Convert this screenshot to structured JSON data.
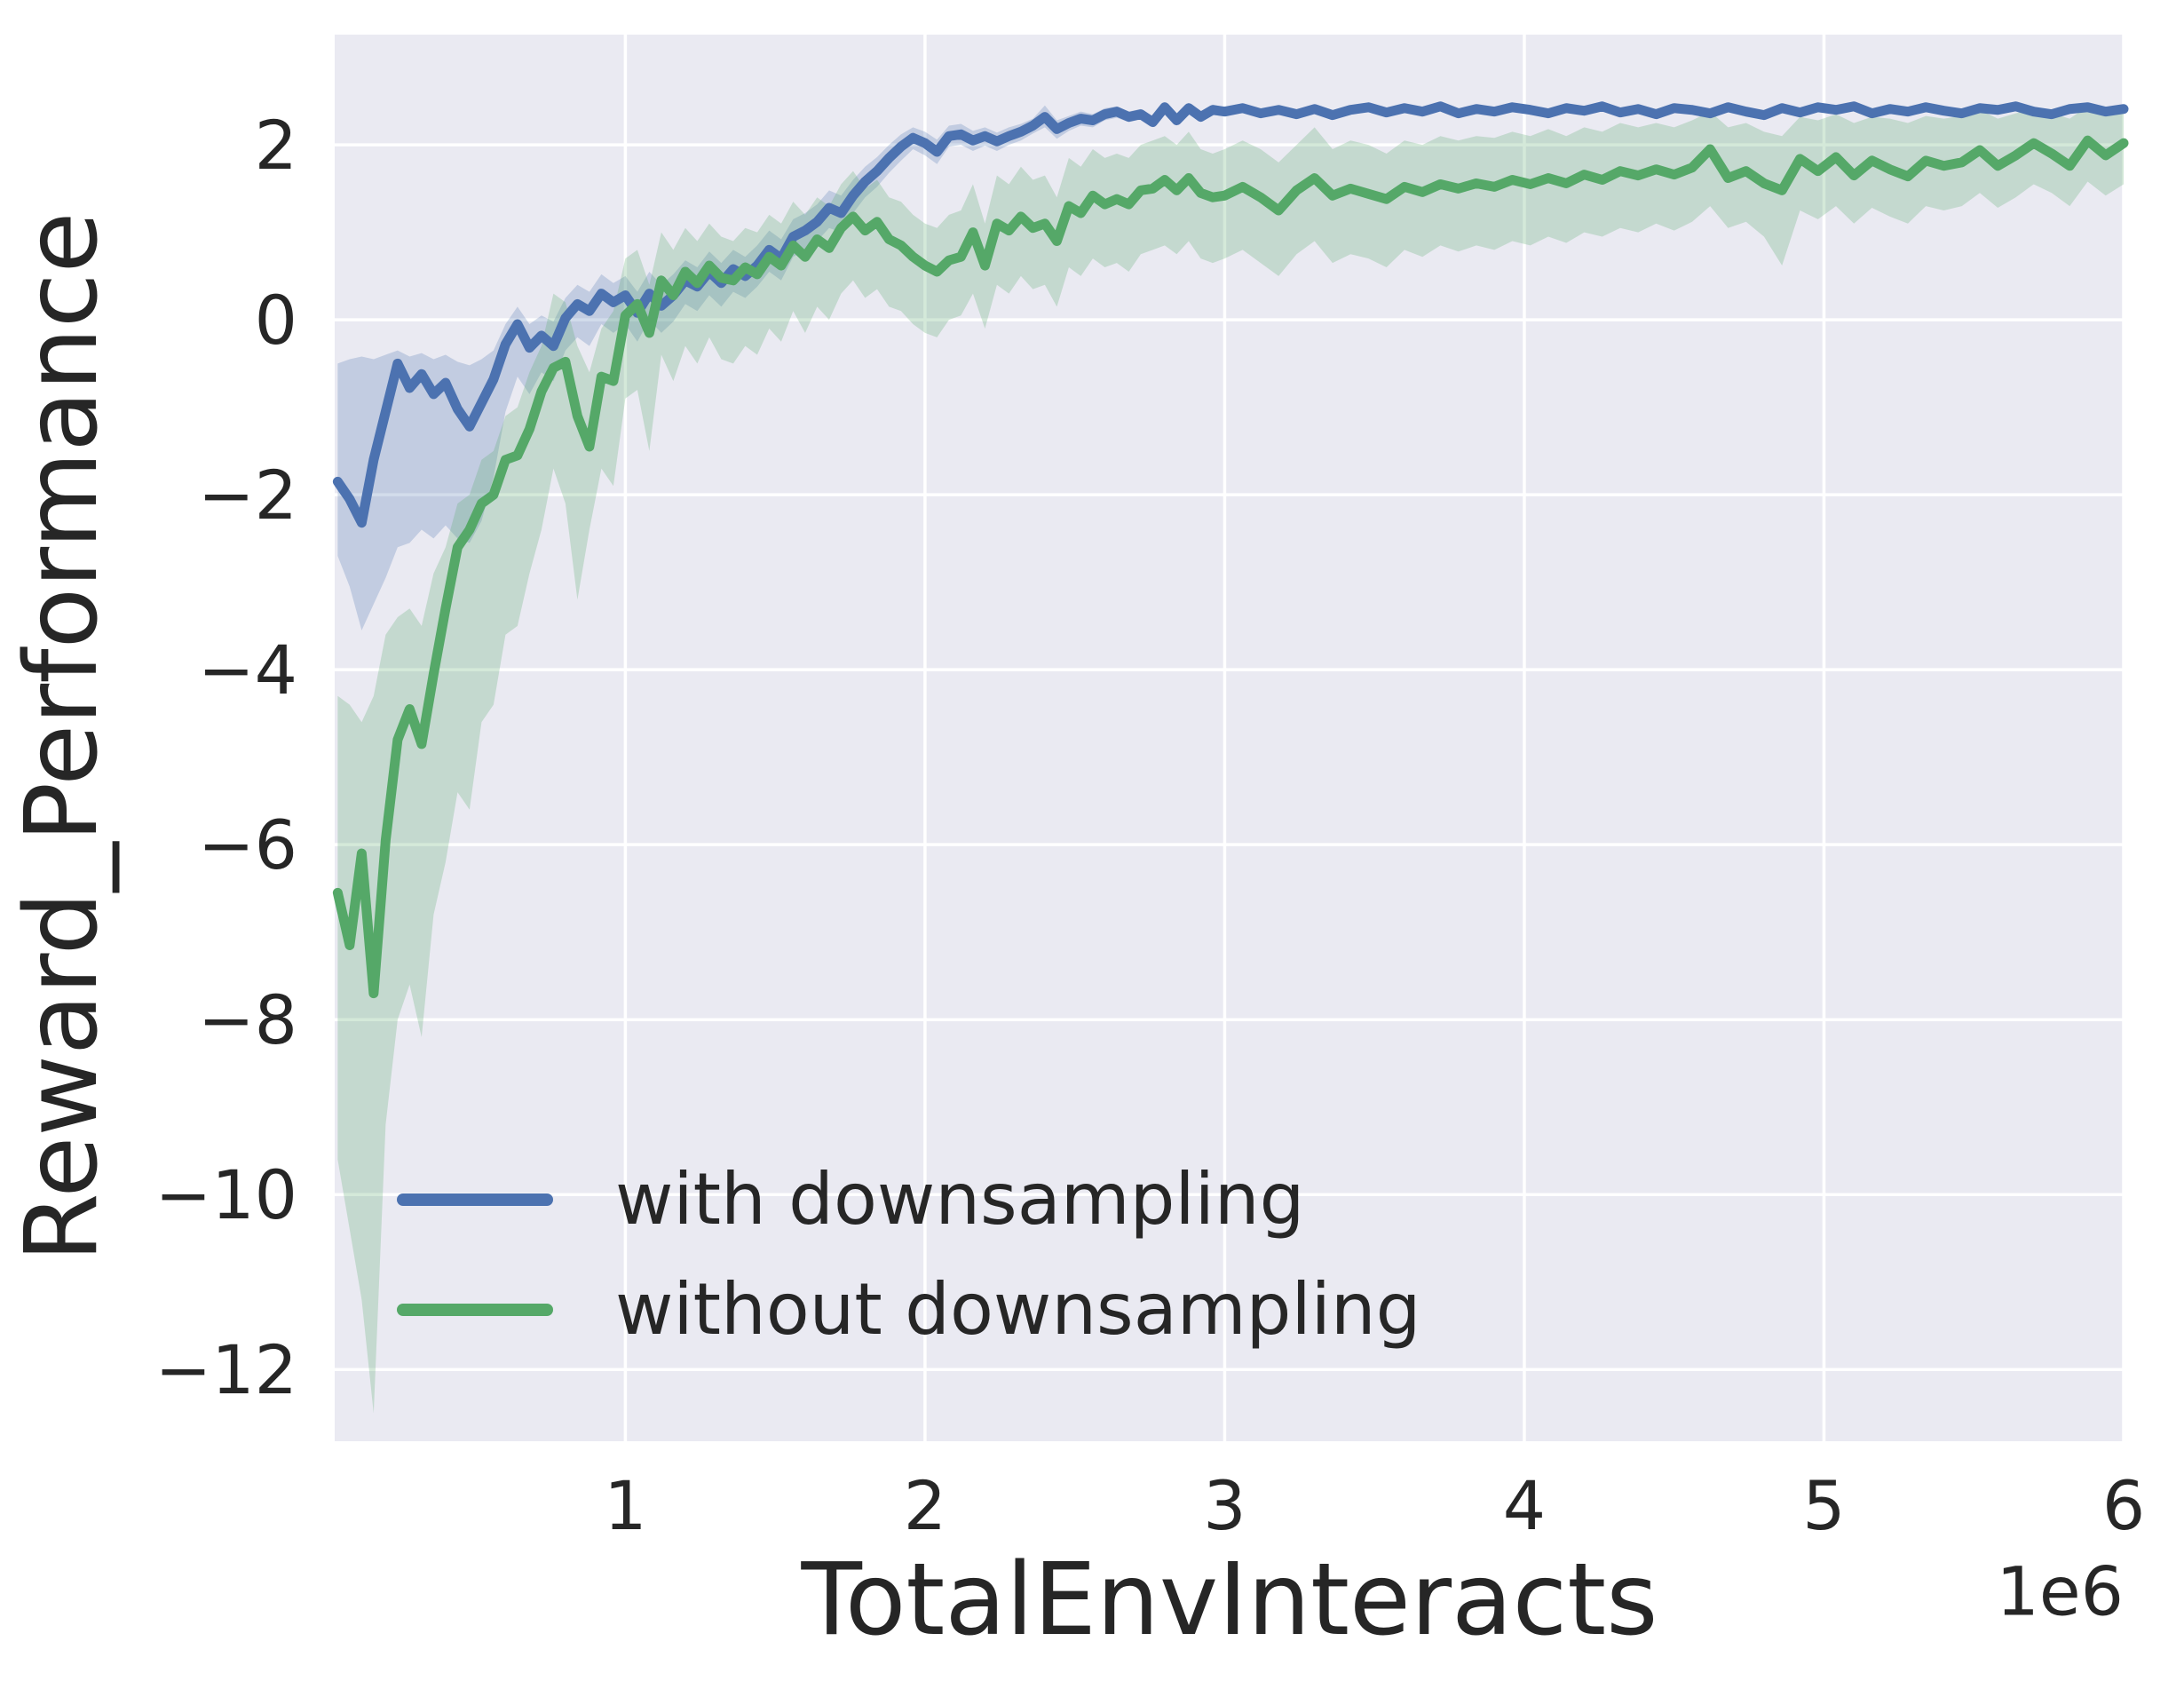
{
  "figure": {
    "background": "#ffffff",
    "plot_background": "#eaeaf2",
    "grid_color": "#ffffff",
    "text_color": "#262626"
  },
  "chart_data": {
    "type": "line",
    "title": "",
    "xlabel": "TotalEnvInteracts",
    "ylabel": "Reward_Performance",
    "x_offset_label": "1e6",
    "x_unit": 1000000,
    "grid": true,
    "legend_position": "lower left",
    "xlim": [
      0.03,
      6.0
    ],
    "ylim": [
      -12.82,
      3.26
    ],
    "xticks": [
      1,
      2,
      3,
      4,
      5,
      6
    ],
    "xtick_labels": [
      "1",
      "2",
      "3",
      "4",
      "5",
      "6"
    ],
    "yticks": [
      2,
      0,
      -2,
      -4,
      -6,
      -8,
      -10,
      -12
    ],
    "ytick_labels": [
      "2",
      "0",
      "−2",
      "−4",
      "−6",
      "−8",
      "−10",
      "−12"
    ],
    "x": [
      0.04,
      0.08,
      0.12,
      0.16,
      0.2,
      0.24,
      0.28,
      0.32,
      0.36,
      0.4,
      0.44,
      0.48,
      0.52,
      0.56,
      0.6,
      0.64,
      0.68,
      0.72,
      0.76,
      0.8,
      0.84,
      0.88,
      0.92,
      0.96,
      1.0,
      1.04,
      1.08,
      1.12,
      1.16,
      1.2,
      1.24,
      1.28,
      1.32,
      1.36,
      1.4,
      1.44,
      1.48,
      1.52,
      1.56,
      1.6,
      1.64,
      1.68,
      1.72,
      1.76,
      1.8,
      1.84,
      1.88,
      1.92,
      1.96,
      2.0,
      2.04,
      2.08,
      2.12,
      2.16,
      2.2,
      2.24,
      2.28,
      2.32,
      2.36,
      2.4,
      2.44,
      2.48,
      2.52,
      2.56,
      2.6,
      2.64,
      2.68,
      2.72,
      2.76,
      2.8,
      2.84,
      2.88,
      2.92,
      2.96,
      3.0,
      3.06,
      3.12,
      3.18,
      3.24,
      3.3,
      3.36,
      3.42,
      3.48,
      3.54,
      3.6,
      3.66,
      3.72,
      3.78,
      3.84,
      3.9,
      3.96,
      4.02,
      4.08,
      4.14,
      4.2,
      4.26,
      4.32,
      4.38,
      4.44,
      4.5,
      4.56,
      4.62,
      4.68,
      4.74,
      4.8,
      4.86,
      4.92,
      4.98,
      5.04,
      5.1,
      5.16,
      5.22,
      5.28,
      5.34,
      5.4,
      5.46,
      5.52,
      5.58,
      5.64,
      5.7,
      5.76,
      5.82,
      5.88,
      5.94,
      6.0
    ],
    "series": [
      {
        "name": "with downsampling",
        "color": "#4c72b0",
        "band_color": "rgba(76,114,176,0.25)",
        "mean": [
          -1.85,
          -2.05,
          -2.32,
          -1.6,
          -1.05,
          -0.5,
          -0.78,
          -0.62,
          -0.85,
          -0.72,
          -1.02,
          -1.22,
          -0.95,
          -0.68,
          -0.28,
          -0.05,
          -0.32,
          -0.18,
          -0.3,
          0.02,
          0.18,
          0.1,
          0.3,
          0.2,
          0.28,
          0.08,
          0.3,
          0.16,
          0.28,
          0.45,
          0.38,
          0.55,
          0.42,
          0.58,
          0.5,
          0.62,
          0.8,
          0.7,
          0.95,
          1.02,
          1.12,
          1.28,
          1.22,
          1.42,
          1.58,
          1.7,
          1.85,
          1.98,
          2.08,
          2.02,
          1.92,
          2.1,
          2.12,
          2.05,
          2.1,
          2.04,
          2.1,
          2.15,
          2.22,
          2.32,
          2.18,
          2.25,
          2.3,
          2.28,
          2.35,
          2.38,
          2.32,
          2.35,
          2.26,
          2.43,
          2.28,
          2.42,
          2.32,
          2.4,
          2.38,
          2.42,
          2.36,
          2.4,
          2.35,
          2.41,
          2.34,
          2.4,
          2.43,
          2.37,
          2.42,
          2.38,
          2.44,
          2.36,
          2.41,
          2.38,
          2.43,
          2.4,
          2.36,
          2.42,
          2.39,
          2.44,
          2.37,
          2.41,
          2.35,
          2.42,
          2.4,
          2.36,
          2.43,
          2.38,
          2.34,
          2.42,
          2.37,
          2.43,
          2.4,
          2.44,
          2.36,
          2.41,
          2.38,
          2.43,
          2.39,
          2.36,
          2.42,
          2.4,
          2.44,
          2.38,
          2.35,
          2.41,
          2.43,
          2.38,
          2.41
        ],
        "upper": [
          -0.5,
          -0.45,
          -0.42,
          -0.45,
          -0.4,
          -0.35,
          -0.42,
          -0.38,
          -0.45,
          -0.4,
          -0.48,
          -0.52,
          -0.45,
          -0.35,
          -0.05,
          0.15,
          -0.05,
          0.05,
          -0.02,
          0.25,
          0.4,
          0.32,
          0.52,
          0.42,
          0.5,
          0.32,
          0.55,
          0.4,
          0.52,
          0.68,
          0.6,
          0.78,
          0.65,
          0.8,
          0.72,
          0.85,
          1.02,
          0.92,
          1.15,
          1.22,
          1.32,
          1.48,
          1.42,
          1.6,
          1.75,
          1.86,
          2.0,
          2.12,
          2.2,
          2.15,
          2.06,
          2.22,
          2.24,
          2.16,
          2.2,
          2.14,
          2.2,
          2.24,
          2.3,
          2.45,
          2.28,
          2.33,
          2.38,
          2.35,
          2.42,
          2.44,
          2.38,
          2.41,
          2.32,
          2.49,
          2.34,
          2.48,
          2.38,
          2.46,
          2.43,
          2.47,
          2.41,
          2.45,
          2.4,
          2.46,
          2.39,
          2.45,
          2.48,
          2.42,
          2.47,
          2.43,
          2.49,
          2.41,
          2.46,
          2.43,
          2.48,
          2.45,
          2.41,
          2.47,
          2.44,
          2.49,
          2.42,
          2.46,
          2.4,
          2.47,
          2.45,
          2.41,
          2.48,
          2.43,
          2.39,
          2.47,
          2.42,
          2.48,
          2.45,
          2.49,
          2.41,
          2.46,
          2.43,
          2.48,
          2.44,
          2.41,
          2.47,
          2.45,
          2.49,
          2.43,
          2.4,
          2.46,
          2.48,
          2.43,
          2.46
        ],
        "lower": [
          -2.7,
          -3.05,
          -3.55,
          -3.25,
          -2.95,
          -2.6,
          -2.55,
          -2.4,
          -2.5,
          -2.35,
          -2.5,
          -2.55,
          -2.3,
          -1.8,
          -1.05,
          -0.65,
          -0.85,
          -0.6,
          -0.7,
          -0.35,
          -0.2,
          -0.3,
          -0.05,
          -0.15,
          -0.05,
          -0.25,
          0.0,
          -0.15,
          -0.02,
          0.18,
          0.1,
          0.28,
          0.15,
          0.32,
          0.25,
          0.38,
          0.55,
          0.45,
          0.72,
          0.8,
          0.9,
          1.05,
          1.0,
          1.22,
          1.4,
          1.52,
          1.68,
          1.82,
          1.95,
          1.88,
          1.78,
          1.98,
          2.0,
          1.93,
          1.99,
          1.93,
          2.0,
          2.05,
          2.13,
          2.2,
          2.07,
          2.16,
          2.22,
          2.2,
          2.28,
          2.31,
          2.26,
          2.29,
          2.2,
          2.37,
          2.22,
          2.36,
          2.26,
          2.34,
          2.33,
          2.37,
          2.31,
          2.35,
          2.3,
          2.36,
          2.29,
          2.35,
          2.38,
          2.32,
          2.37,
          2.33,
          2.39,
          2.31,
          2.36,
          2.33,
          2.38,
          2.35,
          2.31,
          2.37,
          2.34,
          2.39,
          2.32,
          2.36,
          2.3,
          2.37,
          2.35,
          2.31,
          2.38,
          2.33,
          2.29,
          2.37,
          2.32,
          2.38,
          2.35,
          2.39,
          2.31,
          2.36,
          2.33,
          2.38,
          2.34,
          2.31,
          2.37,
          2.35,
          2.39,
          2.33,
          2.3,
          2.36,
          2.38,
          2.33,
          2.36
        ]
      },
      {
        "name": "without downsampling",
        "color": "#55a868",
        "band_color": "rgba(85,168,104,0.25)",
        "mean": [
          -6.55,
          -7.15,
          -6.1,
          -7.7,
          -5.95,
          -4.8,
          -4.45,
          -4.85,
          -4.05,
          -3.3,
          -2.6,
          -2.4,
          -2.1,
          -2.0,
          -1.6,
          -1.55,
          -1.25,
          -0.82,
          -0.55,
          -0.48,
          -1.1,
          -1.45,
          -0.65,
          -0.7,
          0.05,
          0.18,
          -0.15,
          0.45,
          0.28,
          0.55,
          0.42,
          0.62,
          0.48,
          0.45,
          0.6,
          0.52,
          0.72,
          0.62,
          0.85,
          0.72,
          0.92,
          0.82,
          1.05,
          1.18,
          1.02,
          1.12,
          0.92,
          0.85,
          0.72,
          0.62,
          0.55,
          0.68,
          0.72,
          1.0,
          0.62,
          1.1,
          1.02,
          1.18,
          1.05,
          1.1,
          0.9,
          1.3,
          1.22,
          1.42,
          1.32,
          1.38,
          1.32,
          1.48,
          1.5,
          1.6,
          1.48,
          1.62,
          1.45,
          1.4,
          1.42,
          1.52,
          1.4,
          1.25,
          1.48,
          1.62,
          1.42,
          1.5,
          1.44,
          1.38,
          1.52,
          1.46,
          1.55,
          1.5,
          1.56,
          1.52,
          1.6,
          1.55,
          1.62,
          1.56,
          1.66,
          1.6,
          1.7,
          1.65,
          1.72,
          1.66,
          1.74,
          1.95,
          1.62,
          1.7,
          1.56,
          1.48,
          1.84,
          1.7,
          1.86,
          1.65,
          1.82,
          1.72,
          1.64,
          1.82,
          1.76,
          1.8,
          1.94,
          1.76,
          1.88,
          2.02,
          1.9,
          1.76,
          2.05,
          1.88,
          2.02
        ],
        "upper": [
          -4.3,
          -4.4,
          -4.6,
          -4.3,
          -3.6,
          -3.4,
          -3.3,
          -3.5,
          -2.9,
          -2.6,
          -2.1,
          -2.0,
          -1.6,
          -1.5,
          -1.1,
          -1.0,
          -0.6,
          -0.3,
          0.3,
          0.2,
          -0.3,
          -0.6,
          -0.1,
          0.1,
          0.7,
          0.8,
          0.4,
          1.0,
          0.8,
          1.05,
          0.9,
          1.1,
          0.95,
          0.9,
          1.05,
          1.0,
          1.2,
          1.1,
          1.35,
          1.2,
          1.4,
          1.3,
          1.55,
          1.7,
          1.5,
          1.6,
          1.4,
          1.35,
          1.2,
          1.1,
          1.05,
          1.2,
          1.25,
          1.55,
          1.1,
          1.65,
          1.55,
          1.75,
          1.6,
          1.65,
          1.4,
          1.85,
          1.75,
          1.95,
          1.85,
          1.9,
          1.85,
          2.0,
          2.05,
          2.1,
          2.0,
          2.15,
          1.95,
          1.9,
          1.95,
          2.05,
          1.95,
          1.8,
          2.0,
          2.2,
          1.95,
          2.05,
          2.0,
          1.9,
          2.05,
          2.0,
          2.1,
          2.05,
          2.1,
          2.08,
          2.15,
          2.1,
          2.18,
          2.1,
          2.2,
          2.15,
          2.25,
          2.2,
          2.25,
          2.2,
          2.28,
          2.38,
          2.2,
          2.25,
          2.15,
          2.1,
          2.32,
          2.28,
          2.35,
          2.25,
          2.32,
          2.3,
          2.25,
          2.33,
          2.3,
          2.33,
          2.4,
          2.3,
          2.36,
          2.42,
          2.36,
          2.3,
          2.44,
          2.36,
          2.4
        ],
        "lower": [
          -9.6,
          -10.4,
          -11.2,
          -12.5,
          -9.2,
          -8.0,
          -7.6,
          -8.2,
          -6.8,
          -6.2,
          -5.4,
          -5.6,
          -4.6,
          -4.4,
          -3.6,
          -3.5,
          -2.9,
          -2.4,
          -1.7,
          -2.1,
          -3.2,
          -2.4,
          -1.7,
          -1.9,
          -0.9,
          -0.8,
          -1.5,
          -0.4,
          -0.7,
          -0.3,
          -0.5,
          -0.2,
          -0.45,
          -0.5,
          -0.3,
          -0.4,
          -0.1,
          -0.25,
          0.1,
          -0.15,
          0.15,
          0.0,
          0.3,
          0.45,
          0.25,
          0.35,
          0.15,
          0.1,
          -0.05,
          -0.15,
          -0.2,
          0.0,
          0.05,
          0.3,
          -0.1,
          0.4,
          0.3,
          0.5,
          0.35,
          0.4,
          0.15,
          0.6,
          0.5,
          0.7,
          0.6,
          0.65,
          0.55,
          0.75,
          0.8,
          0.85,
          0.75,
          0.9,
          0.7,
          0.65,
          0.7,
          0.8,
          0.65,
          0.5,
          0.75,
          0.9,
          0.65,
          0.75,
          0.7,
          0.6,
          0.8,
          0.72,
          0.85,
          0.78,
          0.85,
          0.8,
          0.9,
          0.85,
          0.95,
          0.88,
          1.0,
          0.95,
          1.05,
          1.0,
          1.1,
          1.02,
          1.12,
          1.3,
          1.05,
          1.12,
          0.95,
          0.62,
          1.25,
          1.15,
          1.3,
          1.1,
          1.28,
          1.18,
          1.1,
          1.3,
          1.25,
          1.3,
          1.45,
          1.28,
          1.4,
          1.55,
          1.45,
          1.3,
          1.58,
          1.42,
          1.55
        ]
      }
    ]
  },
  "legend": {
    "items": [
      {
        "label": "with downsampling"
      },
      {
        "label": "without downsampling"
      }
    ]
  }
}
